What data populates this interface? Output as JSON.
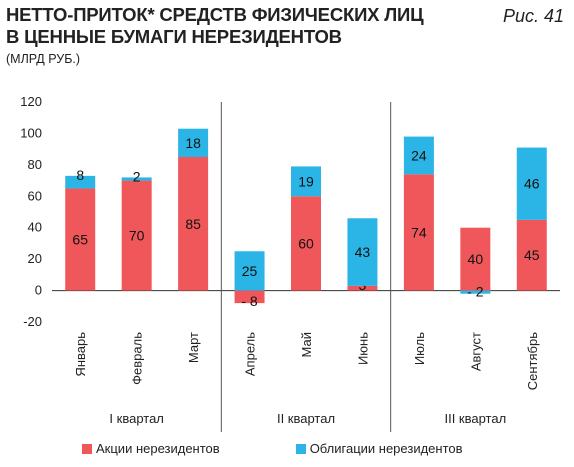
{
  "title": {
    "line1": "НЕТТО-ПРИТОК* СРЕДСТВ ФИЗИЧЕСКИХ ЛИЦ",
    "line2": "В ЦЕННЫЕ БУМАГИ НЕРЕЗИДЕНТОВ",
    "units": "(МЛРД РУБ.)",
    "figure": "Рис. 41"
  },
  "chart_data": {
    "type": "bar",
    "stacked": true,
    "categories": [
      "Январь",
      "Февраль",
      "Март",
      "Апрель",
      "Май",
      "Июнь",
      "Июль",
      "Август",
      "Сентябрь"
    ],
    "groups": [
      {
        "label": "I квартал",
        "categories": [
          "Январь",
          "Февраль",
          "Март"
        ]
      },
      {
        "label": "II квартал",
        "categories": [
          "Апрель",
          "Май",
          "Июнь"
        ]
      },
      {
        "label": "III квартал",
        "categories": [
          "Июль",
          "Август",
          "Сентябрь"
        ]
      }
    ],
    "series": [
      {
        "name": "Акции нерезидентов",
        "color": "#f0575a",
        "values": [
          65,
          70,
          85,
          -8,
          60,
          3,
          74,
          40,
          45
        ],
        "labels": [
          "65",
          "70",
          "85",
          "- 8",
          "60",
          "3",
          "74",
          "40",
          "45"
        ]
      },
      {
        "name": "Облигации нерезидентов",
        "color": "#2bb5e6",
        "values": [
          8,
          2,
          18,
          25,
          19,
          43,
          24,
          -2,
          46
        ],
        "labels": [
          "8",
          "2",
          "18",
          "25",
          "19",
          "43",
          "24",
          "- 2",
          "46"
        ]
      }
    ],
    "ylim": [
      -20,
      120
    ],
    "yticks": [
      -20,
      0,
      20,
      40,
      60,
      80,
      100,
      120
    ],
    "grid": false,
    "legend_position": "bottom"
  }
}
